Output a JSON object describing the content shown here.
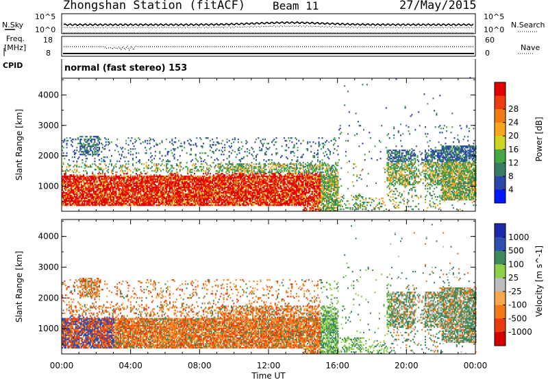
{
  "header": {
    "station": "Zhongshan Station (fitACF)",
    "beam": "Beam 11",
    "date": "27/May/2015"
  },
  "nsky_panel": {
    "left_label": "N.Sky",
    "left_ticks": [
      "10^5",
      "10^0"
    ],
    "right_label": "N.Search",
    "right_ticks": [
      "10^5",
      "10^0"
    ]
  },
  "freq_panel": {
    "left_label_1": "Freq.",
    "left_label_2": "[MHz]",
    "left_ticks": [
      "18",
      "8"
    ],
    "right_label": "Nave",
    "right_ticks": [
      "60",
      "0"
    ]
  },
  "cpid_panel": {
    "label": "CPID",
    "mode": "normal (fast stereo) 153"
  },
  "colors": {
    "power_scale": [
      "#0018ff",
      "#2a47a8",
      "#3b7a63",
      "#45a845",
      "#cdd424",
      "#f7a51c",
      "#f07a12",
      "#ea3d10",
      "#e00000"
    ],
    "velocity_scale": [
      "#d40000",
      "#ea3a10",
      "#f47a18",
      "#f6a84a",
      "#bcbcbc",
      "#8fd04a",
      "#3f8a5a",
      "#2c4fb0",
      "#1a2aa8"
    ]
  },
  "chart_data": [
    {
      "type": "heatmap",
      "title": "",
      "xlabel": "Time UT",
      "ylabel": "Slant Range [km]",
      "x_ticks": [
        "00:00",
        "04:00",
        "08:00",
        "12:00",
        "16:00",
        "20:00",
        "00:00"
      ],
      "xlim": [
        0,
        24
      ],
      "ylim": [
        180,
        4550
      ],
      "y_ticks": [
        "1000",
        "2000",
        "3000",
        "4000"
      ],
      "colorbar_label": "Power [dB]",
      "colorbar_ticks": [
        "4",
        "8",
        "12",
        "16",
        "20",
        "24",
        "28"
      ],
      "grid": false
    },
    {
      "type": "heatmap",
      "title": "",
      "xlabel": "Time UT",
      "ylabel": "Slant Range [km]",
      "x_ticks": [
        "00:00",
        "04:00",
        "08:00",
        "12:00",
        "16:00",
        "20:00",
        "00:00"
      ],
      "xlim": [
        0,
        24
      ],
      "ylim": [
        180,
        4550
      ],
      "y_ticks": [
        "1000",
        "2000",
        "3000",
        "4000"
      ],
      "colorbar_label": "Velocity [m s^-1]",
      "colorbar_ticks": [
        "1000",
        "500",
        "100",
        "25",
        "-25",
        "-100",
        "-500",
        "-1000"
      ],
      "grid": false
    }
  ]
}
